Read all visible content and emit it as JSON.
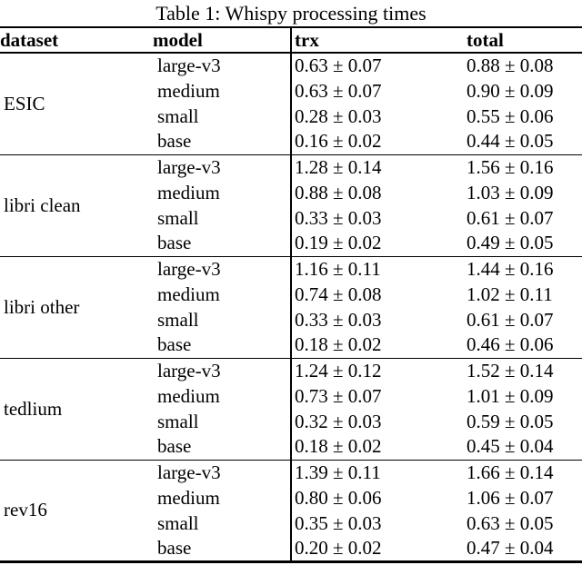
{
  "title": "Table 1: Whispy processing times",
  "table": {
    "columns": [
      "dataset",
      "model",
      "trx",
      "total"
    ],
    "groups": [
      {
        "dataset": "ESIC",
        "rows": [
          {
            "model": "large-v3",
            "trx": "0.63 ± 0.07",
            "total": "0.88 ± 0.08"
          },
          {
            "model": "medium",
            "trx": "0.63 ± 0.07",
            "total": "0.90 ± 0.09"
          },
          {
            "model": "small",
            "trx": "0.28 ± 0.03",
            "total": "0.55 ± 0.06"
          },
          {
            "model": "base",
            "trx": "0.16 ± 0.02",
            "total": "0.44 ± 0.05"
          }
        ]
      },
      {
        "dataset": "libri clean",
        "rows": [
          {
            "model": "large-v3",
            "trx": "1.28 ± 0.14",
            "total": "1.56 ± 0.16"
          },
          {
            "model": "medium",
            "trx": "0.88 ± 0.08",
            "total": "1.03 ± 0.09"
          },
          {
            "model": "small",
            "trx": "0.33 ± 0.03",
            "total": "0.61 ± 0.07"
          },
          {
            "model": "base",
            "trx": "0.19 ± 0.02",
            "total": "0.49 ± 0.05"
          }
        ]
      },
      {
        "dataset": "libri other",
        "rows": [
          {
            "model": "large-v3",
            "trx": "1.16 ± 0.11",
            "total": "1.44 ± 0.16"
          },
          {
            "model": "medium",
            "trx": "0.74 ± 0.08",
            "total": "1.02 ± 0.11"
          },
          {
            "model": "small",
            "trx": "0.33 ± 0.03",
            "total": "0.61 ± 0.07"
          },
          {
            "model": "base",
            "trx": "0.18 ± 0.02",
            "total": "0.46 ± 0.06"
          }
        ]
      },
      {
        "dataset": "tedlium",
        "rows": [
          {
            "model": "large-v3",
            "trx": "1.24 ± 0.12",
            "total": "1.52 ± 0.14"
          },
          {
            "model": "medium",
            "trx": "0.73 ± 0.07",
            "total": "1.01 ± 0.09"
          },
          {
            "model": "small",
            "trx": "0.32 ± 0.03",
            "total": "0.59 ± 0.05"
          },
          {
            "model": "base",
            "trx": "0.18 ± 0.02",
            "total": "0.45 ± 0.04"
          }
        ]
      },
      {
        "dataset": "rev16",
        "rows": [
          {
            "model": "large-v3",
            "trx": "1.39 ± 0.11",
            "total": "1.66 ± 0.14"
          },
          {
            "model": "medium",
            "trx": "0.80 ± 0.06",
            "total": "1.06 ± 0.07"
          },
          {
            "model": "small",
            "trx": "0.35 ± 0.03",
            "total": "0.63 ± 0.05"
          },
          {
            "model": "base",
            "trx": "0.20 ± 0.02",
            "total": "0.47 ± 0.04"
          }
        ]
      }
    ]
  }
}
